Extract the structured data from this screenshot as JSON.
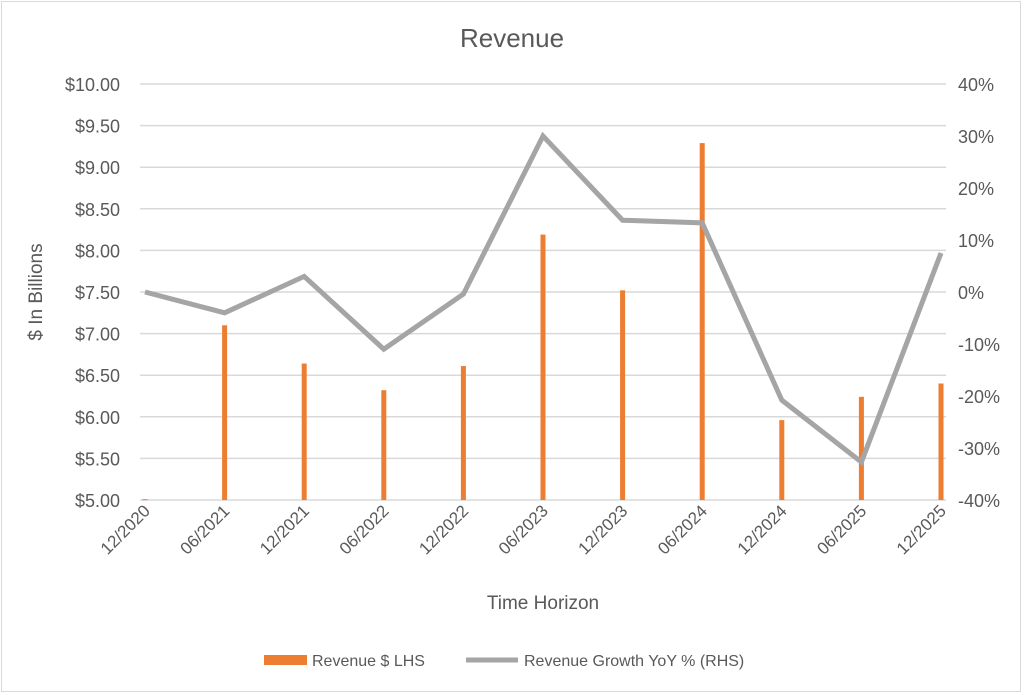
{
  "chart_data": {
    "type": "bar+line",
    "title": "Revenue",
    "xlabel": "Time Horizon",
    "ylabel": "$ In Billions",
    "categories": [
      "12/2020",
      "06/2021",
      "12/2021",
      "06/2022",
      "12/2022",
      "06/2023",
      "12/2023",
      "06/2024",
      "12/2024",
      "06/2025",
      "12/2025"
    ],
    "y_left": {
      "range": [
        5,
        10
      ],
      "step": 0.5,
      "ticks": [
        "$5.00",
        "$5.50",
        "$6.00",
        "$6.50",
        "$7.00",
        "$7.50",
        "$8.00",
        "$8.50",
        "$9.00",
        "$9.50",
        "$10.00"
      ]
    },
    "y_right": {
      "range": [
        -40,
        40
      ],
      "step": 10,
      "ticks": [
        "-40%",
        "-30%",
        "-20%",
        "-10%",
        "0%",
        "10%",
        "20%",
        "30%",
        "40%"
      ]
    },
    "grid": true,
    "legend_position": "bottom",
    "series": [
      {
        "name": "Revenue $ LHS",
        "type": "bar",
        "axis": "left",
        "color": "#ed7d31",
        "values": [
          5.01,
          7.1,
          6.64,
          6.32,
          6.61,
          8.19,
          7.52,
          9.29,
          5.96,
          6.24,
          6.4
        ]
      },
      {
        "name": "Revenue Growth YoY % (RHS)",
        "type": "line",
        "axis": "right",
        "color": "#a5a5a5",
        "values": [
          0.0,
          -4.0,
          3.0,
          -11.0,
          -0.4,
          30.0,
          13.8,
          13.3,
          -20.8,
          -32.7,
          7.5
        ]
      }
    ]
  }
}
